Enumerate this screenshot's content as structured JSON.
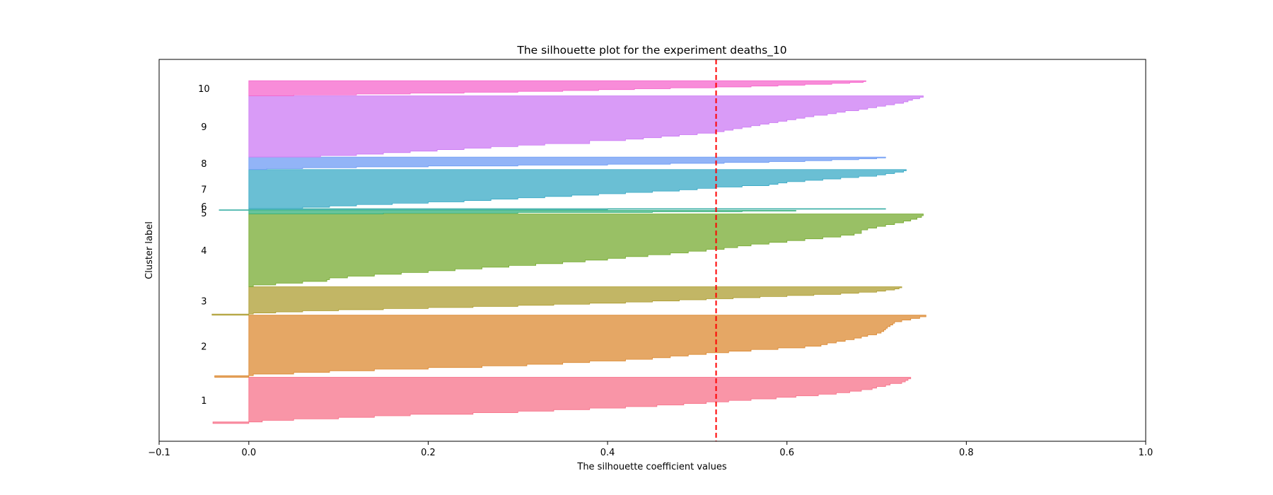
{
  "chart_data": {
    "type": "area",
    "title": "The silhouette plot for the experiment deaths_10",
    "xlabel": "The silhouette coefficient values",
    "ylabel": "Cluster label",
    "xlim": [
      -0.1,
      1.0
    ],
    "ylim": [
      0,
      430
    ],
    "xticks": [
      "−0.1",
      "0.0",
      "0.2",
      "0.4",
      "0.6",
      "0.8",
      "1.0"
    ],
    "xtick_values": [
      -0.1,
      0.0,
      0.2,
      0.4,
      0.6,
      0.8,
      1.0
    ],
    "grid": false,
    "average_silhouette": 0.521,
    "average_line_color": "#ff0000",
    "clusters": [
      {
        "label": "1",
        "y_lower": 20,
        "y_upper": 72,
        "color": "#f77189",
        "values": [
          0.738,
          0.735,
          0.732,
          0.728,
          0.715,
          0.71,
          0.7,
          0.695,
          0.683,
          0.67,
          0.655,
          0.635,
          0.61,
          0.588,
          0.56,
          0.535,
          0.51,
          0.485,
          0.455,
          0.42,
          0.38,
          0.34,
          0.3,
          0.25,
          0.18,
          0.14,
          0.1,
          0.05,
          0.015,
          -0.04
        ]
      },
      {
        "label": "2",
        "y_lower": 72,
        "y_upper": 142,
        "color": "#dc8932",
        "values": [
          0.755,
          0.748,
          0.738,
          0.728,
          0.72,
          0.718,
          0.715,
          0.712,
          0.71,
          0.708,
          0.705,
          0.7,
          0.69,
          0.683,
          0.675,
          0.665,
          0.655,
          0.645,
          0.638,
          0.62,
          0.59,
          0.56,
          0.535,
          0.51,
          0.49,
          0.47,
          0.45,
          0.42,
          0.38,
          0.35,
          0.31,
          0.26,
          0.2,
          0.14,
          0.09,
          0.05,
          0.005,
          -0.038
        ]
      },
      {
        "label": "3",
        "y_lower": 142,
        "y_upper": 174,
        "color": "#ae9d31",
        "values": [
          0.728,
          0.725,
          0.72,
          0.71,
          0.7,
          0.68,
          0.66,
          0.63,
          0.6,
          0.57,
          0.54,
          0.51,
          0.48,
          0.45,
          0.42,
          0.38,
          0.34,
          0.3,
          0.25,
          0.2,
          0.15,
          0.1,
          0.06,
          0.03,
          0.005,
          -0.041
        ]
      },
      {
        "label": "4",
        "y_lower": 174,
        "y_upper": 256,
        "color": "#77ab31",
        "values": [
          0.752,
          0.75,
          0.745,
          0.738,
          0.73,
          0.72,
          0.71,
          0.7,
          0.69,
          0.683,
          0.683,
          0.675,
          0.66,
          0.64,
          0.62,
          0.6,
          0.58,
          0.56,
          0.545,
          0.53,
          0.51,
          0.49,
          0.47,
          0.445,
          0.42,
          0.4,
          0.375,
          0.35,
          0.32,
          0.29,
          0.26,
          0.23,
          0.2,
          0.17,
          0.14,
          0.11,
          0.09,
          0.087,
          0.06,
          0.03,
          0.005
        ]
      },
      {
        "label": "5",
        "y_lower": 256,
        "y_upper": 260,
        "color": "#33b07a",
        "values": [
          0.61,
          0.55,
          0.45,
          0.3,
          0.15
        ]
      },
      {
        "label": "6",
        "y_lower": 260,
        "y_upper": 262,
        "color": "#36ada4",
        "values": [
          0.71,
          0.4,
          -0.033
        ]
      },
      {
        "label": "7",
        "y_lower": 262,
        "y_upper": 306,
        "color": "#38a9c5",
        "values": [
          0.733,
          0.73,
          0.72,
          0.71,
          0.7,
          0.68,
          0.66,
          0.64,
          0.62,
          0.6,
          0.59,
          0.58,
          0.55,
          0.52,
          0.5,
          0.48,
          0.45,
          0.42,
          0.39,
          0.36,
          0.33,
          0.3,
          0.27,
          0.24,
          0.2,
          0.16,
          0.12,
          0.09,
          0.06
        ]
      },
      {
        "label": "8",
        "y_lower": 306,
        "y_upper": 320,
        "color": "#6e9bf4",
        "values": [
          0.71,
          0.7,
          0.68,
          0.65,
          0.62,
          0.58,
          0.53,
          0.47,
          0.4,
          0.3,
          0.2,
          0.12,
          0.06,
          0.02
        ]
      },
      {
        "label": "9",
        "y_lower": 320,
        "y_upper": 389,
        "color": "#cc7af4",
        "values": [
          0.752,
          0.748,
          0.74,
          0.735,
          0.73,
          0.72,
          0.71,
          0.7,
          0.69,
          0.68,
          0.665,
          0.655,
          0.645,
          0.63,
          0.62,
          0.61,
          0.6,
          0.59,
          0.58,
          0.57,
          0.56,
          0.55,
          0.54,
          0.53,
          0.52,
          0.5,
          0.48,
          0.46,
          0.44,
          0.42,
          0.38,
          0.38,
          0.33,
          0.3,
          0.27,
          0.24,
          0.21,
          0.18,
          0.15,
          0.12,
          0.08
        ]
      },
      {
        "label": "10",
        "y_lower": 389,
        "y_upper": 406,
        "color": "#f565cc",
        "values": [
          0.688,
          0.685,
          0.67,
          0.65,
          0.62,
          0.59,
          0.56,
          0.52,
          0.47,
          0.43,
          0.39,
          0.35,
          0.3,
          0.24,
          0.18,
          0.12,
          0.05
        ]
      }
    ]
  }
}
